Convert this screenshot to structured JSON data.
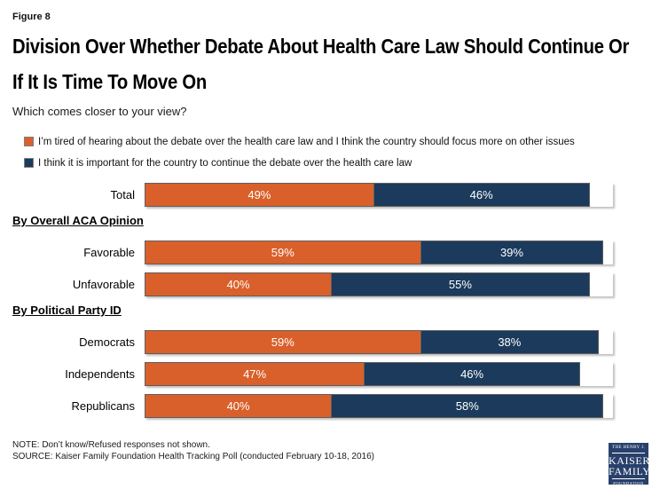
{
  "figure_label": "Figure 8",
  "title": "Division Over Whether Debate About Health Care Law Should Continue Or If It Is Time To Move On",
  "subtitle": "Which comes closer to your view?",
  "colors": {
    "orange": "#D9602A",
    "navy": "#1B3A5C",
    "bar_border": "#5f5f5f",
    "logo_navy": "#29406B",
    "text": "#000000"
  },
  "legend": [
    {
      "label": "I’m tired of hearing about the debate over the health care law and I think the country should focus more on other issues",
      "color": "#D9602A"
    },
    {
      "label": "I think it is important for the country to continue the debate over the health care law",
      "color": "#1B3A5C"
    }
  ],
  "chart_data": {
    "type": "bar",
    "subtype": "horizontal-stacked",
    "title": "Division Over Whether Debate About Health Care Law Should Continue Or If It Is Time To Move On",
    "unit": "%",
    "xlim": [
      0,
      100
    ],
    "grid": false,
    "legend_position": "top",
    "series": [
      {
        "name": "I’m tired of hearing about the debate over the health care law and I think the country should focus more on other issues",
        "color": "#D9602A"
      },
      {
        "name": "I think it is important for the country to continue the debate over the health care law",
        "color": "#1B3A5C"
      }
    ],
    "groups": [
      {
        "header": "",
        "rows": [
          {
            "label": "Total",
            "values": [
              49,
              46
            ]
          }
        ]
      },
      {
        "header": "By Overall ACA Opinion",
        "rows": [
          {
            "label": "Favorable",
            "values": [
              59,
              39
            ]
          },
          {
            "label": "Unfavorable",
            "values": [
              40,
              55
            ]
          }
        ]
      },
      {
        "header": "By Political Party ID",
        "rows": [
          {
            "label": "Democrats",
            "values": [
              59,
              38
            ]
          },
          {
            "label": "Independents",
            "values": [
              47,
              46
            ]
          },
          {
            "label": "Republicans",
            "values": [
              40,
              58
            ]
          }
        ]
      }
    ]
  },
  "footer": {
    "note": "NOTE: Don’t know/Refused responses not shown.",
    "source": "SOURCE: Kaiser Family Foundation Health Tracking Poll (conducted February 10-18, 2016)"
  },
  "logo": {
    "line1": "THE HENRY J.",
    "line2": "KAISER",
    "line3": "FAMILY",
    "line4": "FOUNDATION"
  }
}
